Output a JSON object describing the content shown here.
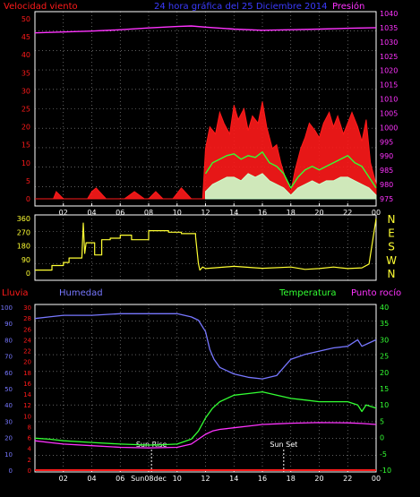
{
  "colors": {
    "bg": "#000000",
    "frame": "#ffffff",
    "grid": "#9a9a9a",
    "red": "#ff1a1a",
    "blue": "#3b3bff",
    "magenta": "#ff33ff",
    "green": "#33ff33",
    "yellow": "#ffff33",
    "periwinkle": "#7777ff",
    "lightgreen": "#ccffcc",
    "white": "#ffffff"
  },
  "chart_data": [
    {
      "type": "line",
      "panel": "wind",
      "left_title": "Velocidad viento",
      "center_title": "24 hora gráfica del   25 Diciembre 2014",
      "right_title": "Presión",
      "y_left_ticks": [
        "0",
        "5",
        "10",
        "15",
        "20",
        "25",
        "30",
        "35",
        "40",
        "45",
        "50"
      ],
      "y_right_ticks": [
        "975",
        "980",
        "985",
        "990",
        "995",
        "1000",
        "1005",
        "1010",
        "1015",
        "1020",
        "1025",
        "1030",
        "1035",
        "1040"
      ],
      "x_ticks": [
        "02",
        "04",
        "06",
        "08",
        "10",
        "12",
        "14",
        "16",
        "18",
        "20",
        "22",
        "00"
      ],
      "ylim_left": [
        0,
        50
      ],
      "ylim_right": [
        975,
        1040
      ],
      "xlim_hours": [
        0,
        24
      ],
      "series": [
        {
          "color": "#ff33ff",
          "axis": "right",
          "x": [
            0,
            2,
            4,
            6,
            8,
            10,
            11,
            12,
            14,
            16,
            18,
            20,
            22,
            24
          ],
          "y": [
            1033.2,
            1033.5,
            1033.8,
            1034.3,
            1034.9,
            1035.4,
            1035.6,
            1035.2,
            1034.5,
            1034.1,
            1034.3,
            1034.5,
            1034.8,
            1035.0
          ]
        },
        {
          "color": "#ff1a1a",
          "axis": "left",
          "x": [
            0,
            0.5,
            1.3,
            1.5,
            2.0,
            3.7,
            4.0,
            4.3,
            5.0,
            6.3,
            7.0,
            7.7,
            8.0,
            8.5,
            9.0,
            9.7,
            10.3,
            11.0,
            11.5,
            11.8,
            12.0,
            12.3,
            12.7,
            13.0,
            13.3,
            13.7,
            14.0,
            14.3,
            14.7,
            15.0,
            15.3,
            15.7,
            16.0,
            16.3,
            16.7,
            17.0,
            17.3,
            17.6,
            18.0,
            18.3,
            18.7,
            19.0,
            19.3,
            19.7,
            20.0,
            20.3,
            20.7,
            21.0,
            21.3,
            21.7,
            22.0,
            22.3,
            22.7,
            23.0,
            23.3,
            23.6,
            24.0
          ],
          "y": [
            0,
            0,
            0,
            2,
            0,
            0,
            2,
            3,
            0,
            0,
            2,
            0,
            0,
            2,
            0,
            0,
            3,
            0,
            0,
            0,
            14,
            20,
            18,
            24,
            21,
            18,
            26,
            22,
            25,
            19,
            23,
            21,
            27,
            20,
            14,
            15,
            10,
            6,
            2,
            8,
            14,
            17,
            21,
            19,
            17,
            21,
            24,
            20,
            23,
            18,
            21,
            24,
            20,
            16,
            22,
            10,
            4
          ]
        },
        {
          "color": "#33ff33",
          "axis": "left",
          "x": [
            12,
            12.5,
            13,
            13.5,
            14,
            14.5,
            15,
            15.5,
            16,
            16.5,
            17,
            17.5,
            18,
            18.5,
            19,
            19.5,
            20,
            20.5,
            21,
            21.5,
            22,
            22.5,
            23,
            23.5,
            24
          ],
          "y": [
            7,
            10,
            11,
            12,
            12.5,
            11,
            12,
            11.5,
            13,
            10,
            9,
            7,
            3,
            6,
            8,
            9,
            8,
            9,
            10,
            11,
            12,
            10,
            9,
            6,
            3
          ]
        },
        {
          "color": "#ccffcc",
          "axis": "left",
          "x": [
            12,
            12.5,
            13,
            13.5,
            14,
            14.5,
            15,
            15.5,
            16,
            16.5,
            17,
            17.5,
            18,
            18.5,
            19,
            19.5,
            20,
            20.5,
            21,
            21.5,
            22,
            22.5,
            23,
            23.5,
            24
          ],
          "y": [
            2,
            4,
            5,
            6,
            6,
            5,
            7,
            6,
            7,
            5,
            4,
            3,
            1,
            3,
            4,
            5,
            4,
            5,
            5,
            6,
            6,
            5,
            4,
            3,
            1
          ]
        }
      ]
    },
    {
      "type": "line",
      "panel": "direction",
      "y_ticks": [
        "0",
        "90",
        "180",
        "270",
        "360"
      ],
      "right_labels": [
        "N",
        "W",
        "S",
        "E",
        "N"
      ],
      "x_ticks": [
        "02",
        "04",
        "06",
        "08",
        "10",
        "12",
        "14",
        "16",
        "18",
        "20",
        "22",
        "00"
      ],
      "ylim": [
        0,
        360
      ],
      "xlim_hours": [
        0,
        24
      ],
      "series": [
        {
          "color": "#ffff33",
          "x": [
            0,
            1.2,
            1.2,
            2.0,
            2.0,
            2.4,
            2.4,
            3.3,
            3.4,
            3.5,
            3.6,
            4.2,
            4.2,
            4.7,
            4.7,
            5.3,
            5.3,
            6.0,
            6.0,
            6.8,
            6.8,
            8.0,
            8.0,
            9.4,
            9.4,
            10.3,
            10.3,
            11.3,
            11.3,
            11.5,
            11.6,
            11.8,
            12.0,
            14,
            16,
            18,
            19,
            20,
            21,
            22,
            23,
            23.5,
            24
          ],
          "y": [
            20,
            20,
            50,
            50,
            70,
            70,
            100,
            100,
            330,
            130,
            200,
            200,
            120,
            120,
            220,
            220,
            230,
            230,
            250,
            250,
            220,
            220,
            280,
            280,
            270,
            270,
            260,
            260,
            240,
            60,
            20,
            40,
            30,
            45,
            32,
            40,
            25,
            30,
            40,
            30,
            35,
            60,
            360
          ]
        }
      ]
    },
    {
      "type": "line",
      "panel": "temperature",
      "left_title": "Lluvia",
      "center_left_title": "Humedad",
      "center_right_title": "Temperatura",
      "right_title": "Punto rocío",
      "y_far_left_ticks": [
        "0",
        "10",
        "20",
        "30",
        "40",
        "50",
        "60",
        "70",
        "80",
        "90",
        "100"
      ],
      "y_left_ticks": [
        "0",
        "2",
        "4",
        "6",
        "8",
        "10",
        "12",
        "14",
        "16",
        "18",
        "20",
        "22",
        "24",
        "26",
        "28",
        "30"
      ],
      "y_right_ticks": [
        "-10",
        "-5",
        "0",
        "5",
        "10",
        "15",
        "20",
        "25",
        "30",
        "35",
        "40"
      ],
      "x_ticks": [
        "02",
        "04",
        "06",
        "08",
        "10",
        "12",
        "14",
        "16",
        "18",
        "20",
        "22",
        "00"
      ],
      "x_tick_08_label": "Sun08dec",
      "ylim_humidity": [
        0,
        100
      ],
      "ylim_rain": [
        0,
        30
      ],
      "ylim_temp": [
        -10,
        40
      ],
      "xlim_hours": [
        0,
        24
      ],
      "annotations": [
        {
          "text": "Sun Rise",
          "x": 8.2
        },
        {
          "text": "Sun Set",
          "x": 17.5
        }
      ],
      "series": [
        {
          "color": "#7777ff",
          "axis": "humidity",
          "x": [
            0,
            1,
            2,
            4,
            6,
            8,
            10,
            11,
            11.5,
            12,
            12.3,
            12.6,
            13,
            14,
            15,
            16,
            17,
            17.5,
            18,
            19,
            20,
            21,
            22,
            22.7,
            23,
            23.5,
            24
          ],
          "y": [
            93,
            94,
            95,
            95,
            96,
            96,
            96,
            94,
            92,
            85,
            74,
            68,
            63,
            59,
            57,
            56,
            58,
            63,
            68,
            71,
            73,
            75,
            76,
            80,
            76,
            78,
            80
          ]
        },
        {
          "color": "#33ff33",
          "axis": "temp",
          "x": [
            0,
            1,
            2,
            4,
            6,
            8,
            9,
            10,
            11,
            11.5,
            12,
            12.5,
            13,
            14,
            15,
            16,
            17,
            18,
            19,
            20,
            21,
            22,
            22.7,
            23,
            23.3,
            24
          ],
          "y": [
            -0.2,
            -0.5,
            -1,
            -1.5,
            -2,
            -2.3,
            -2.2,
            -2,
            -0.5,
            2,
            6,
            9,
            11,
            13,
            13.5,
            14,
            13,
            12,
            11.5,
            11,
            11,
            11,
            10,
            8,
            10,
            9
          ]
        },
        {
          "color": "#ff33ff",
          "axis": "temp",
          "x": [
            0,
            1,
            2,
            4,
            6,
            8,
            10,
            11,
            11.5,
            12,
            12.5,
            13,
            14,
            15,
            16,
            17,
            18,
            20,
            22,
            23,
            24
          ],
          "y": [
            -1,
            -1.5,
            -2,
            -2.5,
            -3,
            -3.2,
            -3,
            -2,
            -0.5,
            1,
            2,
            2.5,
            3,
            3.5,
            4,
            4.2,
            4.4,
            4.6,
            4.5,
            4.3,
            4
          ]
        },
        {
          "color": "#ff1a1a",
          "axis": "rain",
          "x": [
            0,
            24
          ],
          "y": [
            0,
            0
          ]
        }
      ]
    }
  ]
}
